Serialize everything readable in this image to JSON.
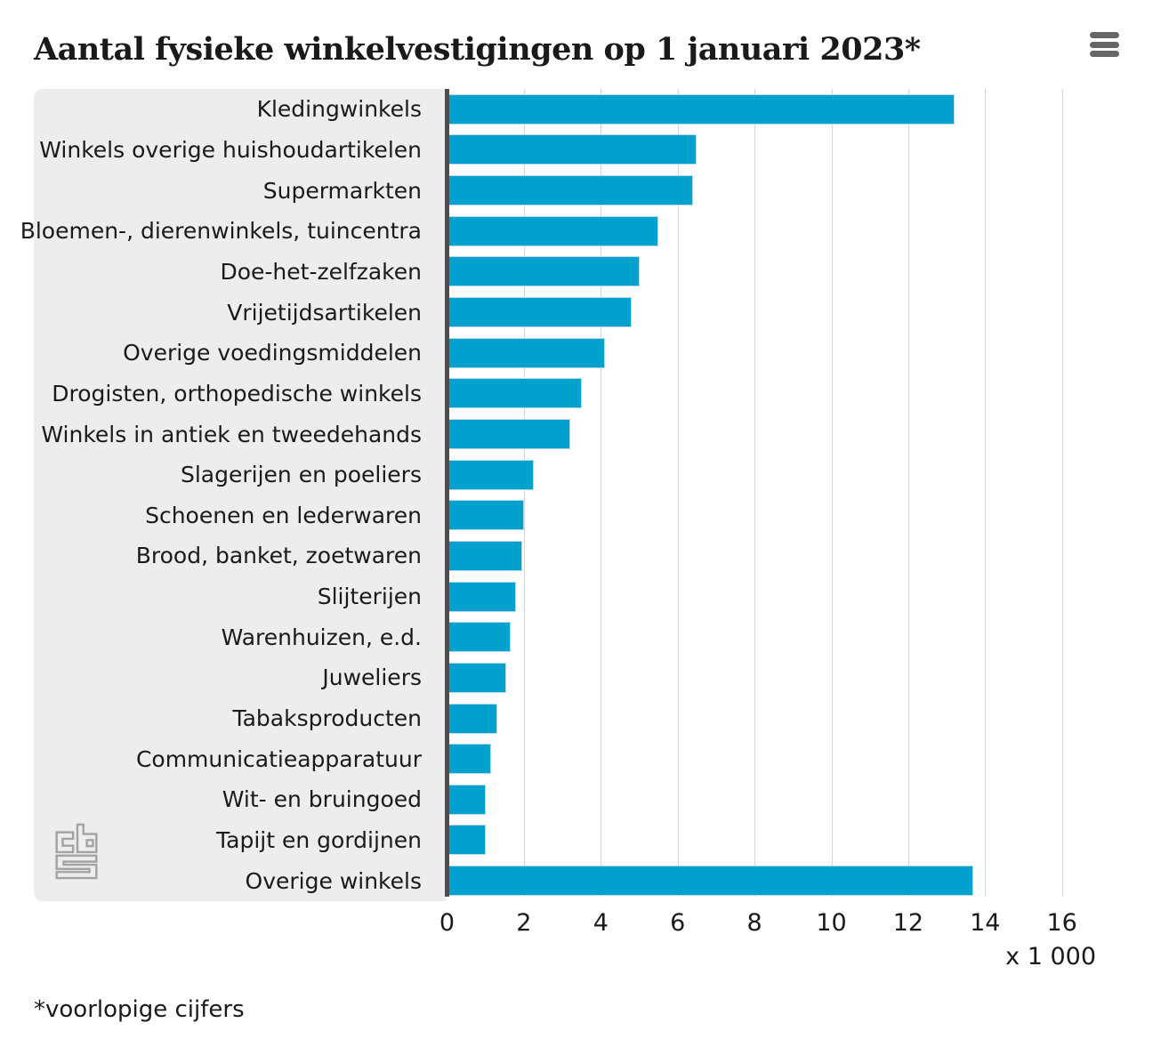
{
  "header": {
    "title": "Aantal fysieke winkelvestigingen op 1 januari 2023*",
    "menu_icon": "hamburger-menu-icon"
  },
  "footnote": "*voorlopige cijfers",
  "colors": {
    "bar": "#00a1cd",
    "panel_bg": "#ededed",
    "axis_line": "#4d4d4d",
    "gridline": "#d6d6d6",
    "text": "#1a1a1a",
    "menu_icon": "#666666",
    "logo": "#a3a3a3"
  },
  "logo": {
    "name": "cbs-logo"
  },
  "chart_data": {
    "type": "bar",
    "orientation": "horizontal",
    "title": "Aantal fysieke winkelvestigingen op 1 januari 2023*",
    "unit_label": "x 1 000",
    "xlabel": "",
    "ylabel": "",
    "xlim": [
      0,
      16
    ],
    "x_ticks": [
      0,
      2,
      4,
      6,
      8,
      10,
      12,
      14,
      16
    ],
    "grid": true,
    "categories": [
      "Kledingwinkels",
      "Winkels overige huishoudartikelen",
      "Supermarkten",
      "Bloemen-, dierenwinkels, tuincentra",
      "Doe-het-zelfzaken",
      "Vrijetijdsartikelen",
      "Overige voedingsmiddelen",
      "Drogisten, orthopedische winkels",
      "Winkels in antiek en tweedehands",
      "Slagerijen en poeliers",
      "Schoenen en lederwaren",
      "Brood, banket, zoetwaren",
      "Slijterijen",
      "Warenhuizen, e.d.",
      "Juweliers",
      "Tabaksproducten",
      "Communicatieapparatuur",
      "Wit- en bruingoed",
      "Tapijt en gordijnen",
      "Overige winkels"
    ],
    "values": [
      13.2,
      6.5,
      6.4,
      5.5,
      5.0,
      4.8,
      4.1,
      3.5,
      3.2,
      2.25,
      2.0,
      1.95,
      1.8,
      1.65,
      1.55,
      1.3,
      1.15,
      1.0,
      1.0,
      13.7
    ]
  }
}
